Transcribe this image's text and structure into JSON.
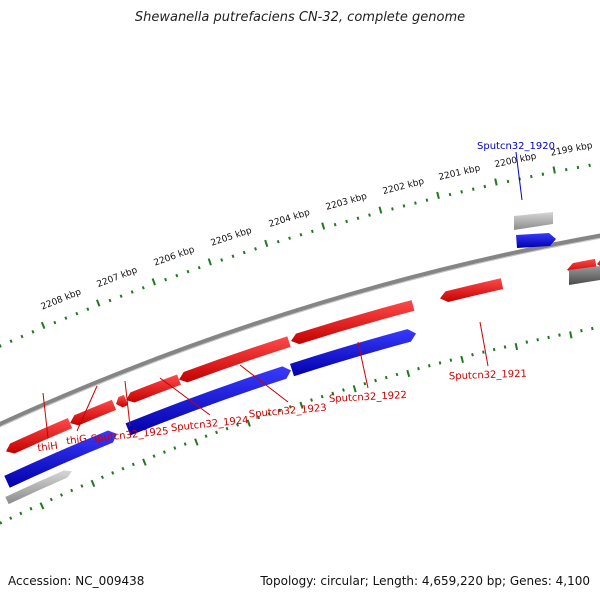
{
  "title": "Shewanella putrefaciens CN-32, complete genome",
  "footer": {
    "accession": "Accession: NC_009438",
    "summary": "Topology: circular; Length: 4,659,220 bp; Genes: 4,100"
  },
  "colors": {
    "backbone": "#858585",
    "tick": "#1f7a1f",
    "forward_gene": "#e31212",
    "reverse_gene": "#1515c8",
    "rna_gene": "#9a9a9a",
    "red_label": "#cc0000",
    "blue_label": "#0000cc"
  },
  "scale_labels": [
    "2208 kbp",
    "2207 kbp",
    "2206 kbp",
    "2205 kbp",
    "2204 kbp",
    "2203 kbp",
    "2202 kbp",
    "2201 kbp",
    "2200 kbp",
    "2199 kbp"
  ],
  "gene_labels": [
    {
      "text": "thiH",
      "color": "red"
    },
    {
      "text": "thiG",
      "color": "red"
    },
    {
      "text": "Sputcn32_1925",
      "color": "red"
    },
    {
      "text": "Sputcn32_1924",
      "color": "red"
    },
    {
      "text": "Sputcn32_1923",
      "color": "red"
    },
    {
      "text": "Sputcn32_1922",
      "color": "red"
    },
    {
      "text": "Sputcn32_1921",
      "color": "red"
    },
    {
      "text": "Sputcn32_1920",
      "color": "blue"
    }
  ]
}
